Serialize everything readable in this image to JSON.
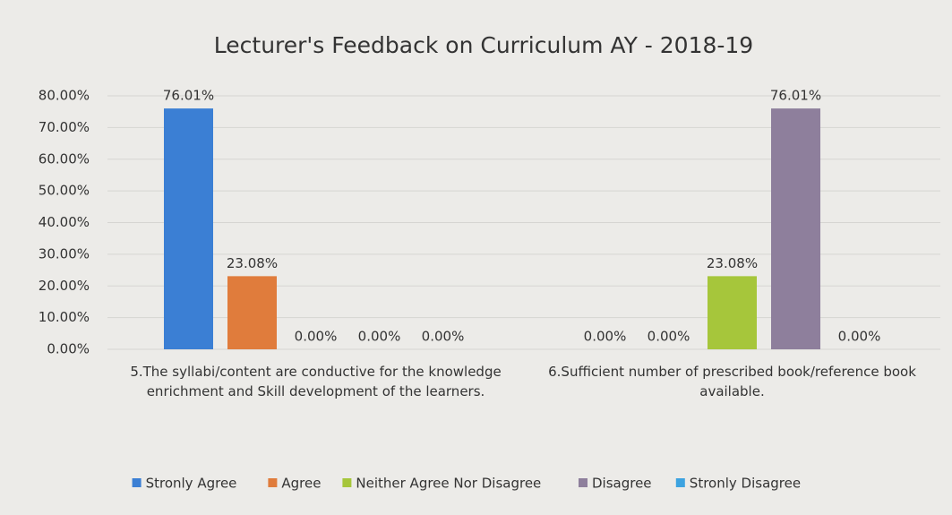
{
  "chart_data": {
    "type": "bar",
    "title": "Lecturer's Feedback on Curriculum AY - 2018-19",
    "categories": [
      "5.The syllabi/content are conductive for the knowledge enrichment and Skill development of the learners.",
      "6.Sufficient number of prescribed book/reference book available."
    ],
    "series": [
      {
        "name": "Stronly Agree",
        "color": "#3b7fd4",
        "values": [
          76.01,
          0
        ],
        "value_labels": [
          "76.01%",
          "0.00%"
        ]
      },
      {
        "name": "Agree",
        "color": "#e07c3c",
        "values": [
          23.08,
          0
        ],
        "value_labels": [
          "23.08%",
          "0.00%"
        ]
      },
      {
        "name": "Neither Agree Nor Disagree",
        "color": "#a6c63b",
        "values": [
          0,
          23.08
        ],
        "value_labels": [
          "0.00%",
          "23.08%"
        ]
      },
      {
        "name": "Disagree",
        "color": "#8e7f9c",
        "values": [
          0,
          76.01
        ],
        "value_labels": [
          "0.00%",
          "76.01%"
        ]
      },
      {
        "name": "Stronly Disagree",
        "color": "#3da3e0",
        "values": [
          0,
          0
        ],
        "value_labels": [
          "0.00%",
          "0.00%"
        ]
      }
    ],
    "ylim": [
      0,
      80
    ],
    "yticks": [
      {
        "value": 0,
        "label": "0.00%"
      },
      {
        "value": 10,
        "label": "10.00%"
      },
      {
        "value": 20,
        "label": "20.00%"
      },
      {
        "value": 30,
        "label": "30.00%"
      },
      {
        "value": 40,
        "label": "40.00%"
      },
      {
        "value": 50,
        "label": "50.00%"
      },
      {
        "value": 60,
        "label": "60.00%"
      },
      {
        "value": 70,
        "label": "70.00%"
      },
      {
        "value": 80,
        "label": "80.00%"
      }
    ],
    "grid": true,
    "legend": "bottom"
  }
}
